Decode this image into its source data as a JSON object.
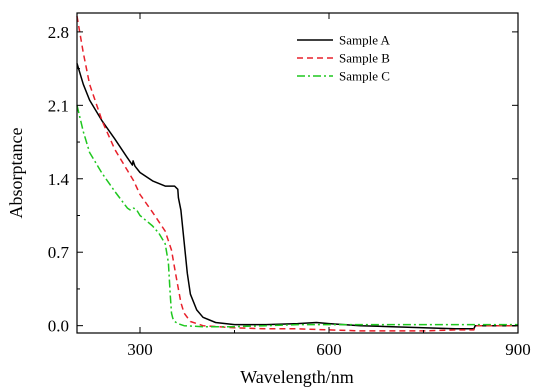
{
  "chart_data": {
    "type": "line",
    "title": "",
    "xlabel": "Wavelength/nm",
    "ylabel": "Absorptance",
    "xlim": [
      200,
      900
    ],
    "ylim": [
      -0.07,
      2.98
    ],
    "xticks": [
      300,
      600,
      900
    ],
    "xtick_labels": [
      "300",
      "600",
      "900"
    ],
    "yticks": [
      0.0,
      0.7,
      1.4,
      2.1,
      2.8
    ],
    "ytick_labels": [
      "0.0",
      "0.7",
      "1.4",
      "2.1",
      "2.8"
    ],
    "grid": false,
    "legend_position": "top-right",
    "series": [
      {
        "name": "Sample A",
        "color": "#000000",
        "dash": "solid",
        "x": [
          200,
          210,
          220,
          240,
          260,
          280,
          288,
          289,
          292,
          300,
          320,
          340,
          355,
          360,
          361,
          365,
          370,
          375,
          380,
          390,
          400,
          420,
          450,
          500,
          550,
          580,
          600,
          650,
          700,
          750,
          800,
          830,
          832,
          850,
          900
        ],
        "y": [
          2.5,
          2.3,
          2.15,
          1.95,
          1.78,
          1.6,
          1.53,
          1.57,
          1.52,
          1.46,
          1.38,
          1.33,
          1.33,
          1.3,
          1.22,
          1.1,
          0.8,
          0.5,
          0.3,
          0.15,
          0.08,
          0.03,
          0.01,
          0.01,
          0.02,
          0.03,
          0.02,
          0.0,
          -0.01,
          -0.02,
          -0.03,
          -0.03,
          0.0,
          0.0,
          0.0
        ]
      },
      {
        "name": "Sample B",
        "color": "#e8212b",
        "dash": "dashed",
        "x": [
          200,
          210,
          220,
          240,
          260,
          280,
          290,
          300,
          320,
          340,
          350,
          355,
          360,
          365,
          370,
          380,
          400,
          450,
          500,
          550,
          600,
          650,
          700,
          750,
          800,
          830,
          832,
          850,
          900
        ],
        "y": [
          2.95,
          2.6,
          2.3,
          1.95,
          1.68,
          1.48,
          1.38,
          1.25,
          1.08,
          0.9,
          0.72,
          0.55,
          0.38,
          0.22,
          0.12,
          0.04,
          0.0,
          -0.02,
          -0.03,
          -0.03,
          -0.04,
          -0.05,
          -0.05,
          -0.05,
          -0.04,
          -0.04,
          0.0,
          0.0,
          0.0
        ]
      },
      {
        "name": "Sample C",
        "color": "#1fc71f",
        "dash": "dashdot",
        "x": [
          200,
          210,
          220,
          240,
          260,
          280,
          285,
          290,
          295,
          300,
          320,
          330,
          340,
          345,
          348,
          350,
          352,
          355,
          360,
          370,
          400,
          450,
          500,
          550,
          600,
          650,
          700,
          750,
          800,
          850,
          900
        ],
        "y": [
          2.1,
          1.85,
          1.65,
          1.45,
          1.28,
          1.12,
          1.1,
          1.12,
          1.1,
          1.05,
          0.95,
          0.88,
          0.78,
          0.6,
          0.3,
          0.12,
          0.07,
          0.04,
          0.02,
          0.0,
          -0.01,
          -0.01,
          0.0,
          0.01,
          0.01,
          0.01,
          0.01,
          0.01,
          0.01,
          0.01,
          0.01
        ]
      }
    ]
  }
}
